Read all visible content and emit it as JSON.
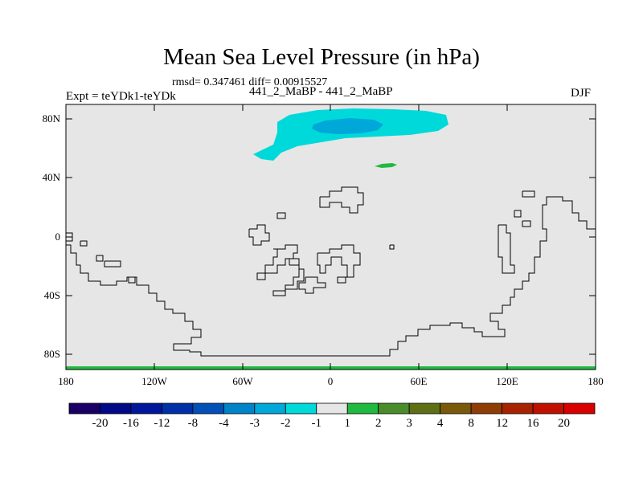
{
  "title": "Mean Sea Level Pressure (in hPa)",
  "subtitle_stats": "rmsd= 0.347461 diff= 0.00915527",
  "left_label": "Expt = teYDk1-teYDk",
  "center_label": "441_2_MaBP - 441_2_MaBP",
  "right_label": "DJF",
  "map": {
    "background_color": "#e6e6e6",
    "coastline_color": "#000000",
    "lon_ticks": [
      "180",
      "120W",
      "60W",
      "0",
      "60E",
      "120E",
      "180"
    ],
    "lat_ticks": [
      "80N",
      "40N",
      "0",
      "40S",
      "80S"
    ],
    "lon_range": [
      -180,
      180
    ],
    "lat_range": [
      -90,
      90
    ],
    "anomalies": [
      {
        "name": "arctic-negative-outer",
        "level": "-2 to -1",
        "color": "#00d9d9"
      },
      {
        "name": "arctic-negative-core",
        "level": "-3 to -2",
        "color": "#00a7d9"
      },
      {
        "name": "small-positive-patch",
        "level": "1 to 2",
        "color": "#1fba3f"
      },
      {
        "name": "antarctic-positive-band",
        "level": "1 to 2",
        "color": "#1fba3f"
      }
    ]
  },
  "colorbar": {
    "labels": [
      "-20",
      "-16",
      "-12",
      "-8",
      "-4",
      "-3",
      "-2",
      "-1",
      "1",
      "2",
      "3",
      "4",
      "8",
      "12",
      "16",
      "20"
    ],
    "colors": [
      "#1a0066",
      "#000a87",
      "#00179c",
      "#0030a8",
      "#0050b8",
      "#0083c8",
      "#00a7d9",
      "#00d9d9",
      "#e6e6e6",
      "#1fba3f",
      "#4a8c2a",
      "#5f6f14",
      "#7a5a0a",
      "#8f3c06",
      "#a82400",
      "#c01000",
      "#d90000"
    ]
  }
}
